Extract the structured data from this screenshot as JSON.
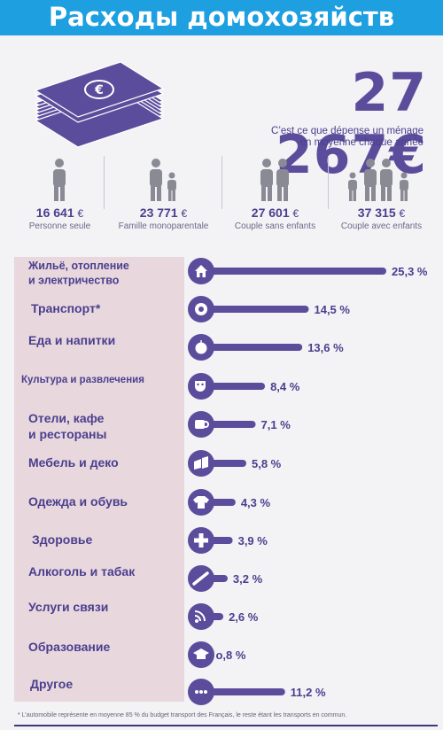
{
  "header": {
    "title": "Расходы домохозяйств"
  },
  "summary": {
    "total": "27 267€",
    "subtitle_line1": "C’est ce que dépense un ménage",
    "subtitle_line2": "en moyenne chaque année"
  },
  "households": [
    {
      "amount": "16 641",
      "currency": "€",
      "label": "Personne seule",
      "icon": "single-person-icon"
    },
    {
      "amount": "23 771",
      "currency": "€",
      "label": "Famille monoparentale",
      "icon": "single-parent-family-icon"
    },
    {
      "amount": "27 601",
      "currency": "€",
      "label": "Couple sans enfants",
      "icon": "couple-icon"
    },
    {
      "amount": "37 315",
      "currency": "€",
      "label": "Couple avec enfants",
      "icon": "family-with-children-icon"
    }
  ],
  "chart_data": {
    "type": "bar",
    "orientation": "horizontal",
    "unit": "%",
    "max_value": 25.3,
    "categories": [
      "Жильё, отопление и электричество",
      "Транспорт*",
      "Еда и напитки",
      "Культура и развлечения",
      "Отели, кафе и рестораны",
      "Мебель и деко",
      "Одежда и обувь",
      "Здоровье",
      "Алкоголь и табак",
      "Услуги связи",
      "Образование",
      "Другое"
    ],
    "values": [
      25.3,
      14.5,
      13.6,
      8.4,
      7.1,
      5.8,
      4.3,
      3.9,
      3.2,
      2.6,
      0.8,
      11.2
    ],
    "value_labels": [
      "25,3 %",
      "14,5 %",
      "13,6 %",
      "8,4 %",
      "7,1 %",
      "5,8 %",
      "4,3 %",
      "3,9 %",
      "3,2 %",
      "2,6 %",
      "o,8 %",
      "11,2 %"
    ],
    "icons": [
      "house-icon",
      "wheel-icon",
      "apple-icon",
      "theater-masks-icon",
      "cup-icon",
      "furniture-icon",
      "tshirt-icon",
      "cross-icon",
      "cigarette-icon",
      "rss-icon",
      "graduation-cap-icon",
      "ellipsis-icon"
    ],
    "bar_color": "#5c4d9c",
    "label_panel_color": "#e8d7dc"
  },
  "footnote": "* L’automobile représente en moyenne 85 % du budget transport des Français, le reste étant les transports en commun."
}
